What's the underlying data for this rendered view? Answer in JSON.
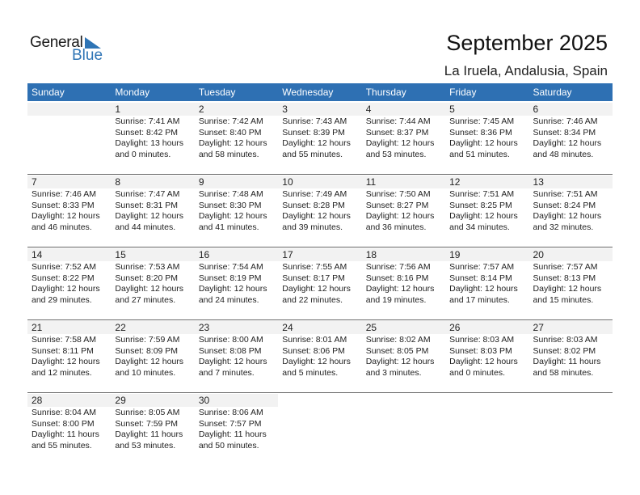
{
  "logo": {
    "line1": "General",
    "line2": "Blue"
  },
  "header": {
    "title": "September 2025",
    "location": "La Iruela, Andalusia, Spain"
  },
  "colors": {
    "accent": "#2e70b3",
    "day_strip": "#f2f2f2"
  },
  "weekdays": [
    "Sunday",
    "Monday",
    "Tuesday",
    "Wednesday",
    "Thursday",
    "Friday",
    "Saturday"
  ],
  "weeks": [
    [
      null,
      {
        "day": "1",
        "sunrise": "Sunrise: 7:41 AM",
        "sunset": "Sunset: 8:42 PM",
        "daylight1": "Daylight: 13 hours",
        "daylight2": "and 0 minutes."
      },
      {
        "day": "2",
        "sunrise": "Sunrise: 7:42 AM",
        "sunset": "Sunset: 8:40 PM",
        "daylight1": "Daylight: 12 hours",
        "daylight2": "and 58 minutes."
      },
      {
        "day": "3",
        "sunrise": "Sunrise: 7:43 AM",
        "sunset": "Sunset: 8:39 PM",
        "daylight1": "Daylight: 12 hours",
        "daylight2": "and 55 minutes."
      },
      {
        "day": "4",
        "sunrise": "Sunrise: 7:44 AM",
        "sunset": "Sunset: 8:37 PM",
        "daylight1": "Daylight: 12 hours",
        "daylight2": "and 53 minutes."
      },
      {
        "day": "5",
        "sunrise": "Sunrise: 7:45 AM",
        "sunset": "Sunset: 8:36 PM",
        "daylight1": "Daylight: 12 hours",
        "daylight2": "and 51 minutes."
      },
      {
        "day": "6",
        "sunrise": "Sunrise: 7:46 AM",
        "sunset": "Sunset: 8:34 PM",
        "daylight1": "Daylight: 12 hours",
        "daylight2": "and 48 minutes."
      }
    ],
    [
      {
        "day": "7",
        "sunrise": "Sunrise: 7:46 AM",
        "sunset": "Sunset: 8:33 PM",
        "daylight1": "Daylight: 12 hours",
        "daylight2": "and 46 minutes."
      },
      {
        "day": "8",
        "sunrise": "Sunrise: 7:47 AM",
        "sunset": "Sunset: 8:31 PM",
        "daylight1": "Daylight: 12 hours",
        "daylight2": "and 44 minutes."
      },
      {
        "day": "9",
        "sunrise": "Sunrise: 7:48 AM",
        "sunset": "Sunset: 8:30 PM",
        "daylight1": "Daylight: 12 hours",
        "daylight2": "and 41 minutes."
      },
      {
        "day": "10",
        "sunrise": "Sunrise: 7:49 AM",
        "sunset": "Sunset: 8:28 PM",
        "daylight1": "Daylight: 12 hours",
        "daylight2": "and 39 minutes."
      },
      {
        "day": "11",
        "sunrise": "Sunrise: 7:50 AM",
        "sunset": "Sunset: 8:27 PM",
        "daylight1": "Daylight: 12 hours",
        "daylight2": "and 36 minutes."
      },
      {
        "day": "12",
        "sunrise": "Sunrise: 7:51 AM",
        "sunset": "Sunset: 8:25 PM",
        "daylight1": "Daylight: 12 hours",
        "daylight2": "and 34 minutes."
      },
      {
        "day": "13",
        "sunrise": "Sunrise: 7:51 AM",
        "sunset": "Sunset: 8:24 PM",
        "daylight1": "Daylight: 12 hours",
        "daylight2": "and 32 minutes."
      }
    ],
    [
      {
        "day": "14",
        "sunrise": "Sunrise: 7:52 AM",
        "sunset": "Sunset: 8:22 PM",
        "daylight1": "Daylight: 12 hours",
        "daylight2": "and 29 minutes."
      },
      {
        "day": "15",
        "sunrise": "Sunrise: 7:53 AM",
        "sunset": "Sunset: 8:20 PM",
        "daylight1": "Daylight: 12 hours",
        "daylight2": "and 27 minutes."
      },
      {
        "day": "16",
        "sunrise": "Sunrise: 7:54 AM",
        "sunset": "Sunset: 8:19 PM",
        "daylight1": "Daylight: 12 hours",
        "daylight2": "and 24 minutes."
      },
      {
        "day": "17",
        "sunrise": "Sunrise: 7:55 AM",
        "sunset": "Sunset: 8:17 PM",
        "daylight1": "Daylight: 12 hours",
        "daylight2": "and 22 minutes."
      },
      {
        "day": "18",
        "sunrise": "Sunrise: 7:56 AM",
        "sunset": "Sunset: 8:16 PM",
        "daylight1": "Daylight: 12 hours",
        "daylight2": "and 19 minutes."
      },
      {
        "day": "19",
        "sunrise": "Sunrise: 7:57 AM",
        "sunset": "Sunset: 8:14 PM",
        "daylight1": "Daylight: 12 hours",
        "daylight2": "and 17 minutes."
      },
      {
        "day": "20",
        "sunrise": "Sunrise: 7:57 AM",
        "sunset": "Sunset: 8:13 PM",
        "daylight1": "Daylight: 12 hours",
        "daylight2": "and 15 minutes."
      }
    ],
    [
      {
        "day": "21",
        "sunrise": "Sunrise: 7:58 AM",
        "sunset": "Sunset: 8:11 PM",
        "daylight1": "Daylight: 12 hours",
        "daylight2": "and 12 minutes."
      },
      {
        "day": "22",
        "sunrise": "Sunrise: 7:59 AM",
        "sunset": "Sunset: 8:09 PM",
        "daylight1": "Daylight: 12 hours",
        "daylight2": "and 10 minutes."
      },
      {
        "day": "23",
        "sunrise": "Sunrise: 8:00 AM",
        "sunset": "Sunset: 8:08 PM",
        "daylight1": "Daylight: 12 hours",
        "daylight2": "and 7 minutes."
      },
      {
        "day": "24",
        "sunrise": "Sunrise: 8:01 AM",
        "sunset": "Sunset: 8:06 PM",
        "daylight1": "Daylight: 12 hours",
        "daylight2": "and 5 minutes."
      },
      {
        "day": "25",
        "sunrise": "Sunrise: 8:02 AM",
        "sunset": "Sunset: 8:05 PM",
        "daylight1": "Daylight: 12 hours",
        "daylight2": "and 3 minutes."
      },
      {
        "day": "26",
        "sunrise": "Sunrise: 8:03 AM",
        "sunset": "Sunset: 8:03 PM",
        "daylight1": "Daylight: 12 hours",
        "daylight2": "and 0 minutes."
      },
      {
        "day": "27",
        "sunrise": "Sunrise: 8:03 AM",
        "sunset": "Sunset: 8:02 PM",
        "daylight1": "Daylight: 11 hours",
        "daylight2": "and 58 minutes."
      }
    ],
    [
      {
        "day": "28",
        "sunrise": "Sunrise: 8:04 AM",
        "sunset": "Sunset: 8:00 PM",
        "daylight1": "Daylight: 11 hours",
        "daylight2": "and 55 minutes."
      },
      {
        "day": "29",
        "sunrise": "Sunrise: 8:05 AM",
        "sunset": "Sunset: 7:59 PM",
        "daylight1": "Daylight: 11 hours",
        "daylight2": "and 53 minutes."
      },
      {
        "day": "30",
        "sunrise": "Sunrise: 8:06 AM",
        "sunset": "Sunset: 7:57 PM",
        "daylight1": "Daylight: 11 hours",
        "daylight2": "and 50 minutes."
      },
      null,
      null,
      null,
      null
    ]
  ]
}
